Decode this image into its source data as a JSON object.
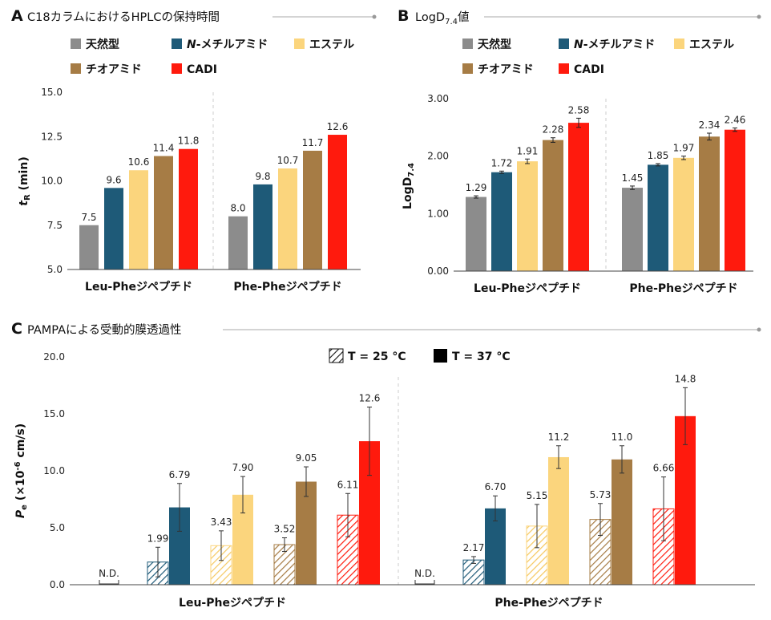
{
  "colors": {
    "natural": "#8c8c8c",
    "nmethyl": "#1e5a78",
    "ester": "#fbd57d",
    "thioamide": "#a67c45",
    "cadi": "#ff1a0d",
    "axis": "#444444",
    "divider": "#cccccc",
    "title_line": "#aaaaaa"
  },
  "legend_items": [
    {
      "key": "natural",
      "label": "天然型"
    },
    {
      "key": "nmethyl",
      "label_prefix": "N",
      "label": "-メチルアミド"
    },
    {
      "key": "ester",
      "label": "エステル"
    },
    {
      "key": "thioamide",
      "label": "チオアミド"
    },
    {
      "key": "cadi",
      "label": "CADI"
    }
  ],
  "chart_data": [
    {
      "panel": "A",
      "type": "bar",
      "title": "C18カラムにおけるHPLCの保持時間",
      "ylabel_main": "t",
      "ylabel_sub": "R",
      "ylabel_rest": " (min)",
      "ylim": [
        5.0,
        15.0
      ],
      "yticks": [
        "5.0",
        "7.5",
        "10.0",
        "12.5",
        "15.0"
      ],
      "ytick_values": [
        5.0,
        7.5,
        10.0,
        12.5,
        15.0
      ],
      "categories": [
        "Leu-Pheジペプチド",
        "Phe-Pheジペプチド"
      ],
      "series": [
        {
          "name": "天然型",
          "key": "natural",
          "values": [
            7.5,
            8.0
          ],
          "labels": [
            "7.5",
            "8.0"
          ]
        },
        {
          "name": "N-メチルアミド",
          "key": "nmethyl",
          "values": [
            9.6,
            9.8
          ],
          "labels": [
            "9.6",
            "9.8"
          ]
        },
        {
          "name": "エステル",
          "key": "ester",
          "values": [
            10.6,
            10.7
          ],
          "labels": [
            "10.6",
            "10.7"
          ]
        },
        {
          "name": "チオアミド",
          "key": "thioamide",
          "values": [
            11.4,
            11.7
          ],
          "labels": [
            "11.4",
            "11.7"
          ]
        },
        {
          "name": "CADI",
          "key": "cadi",
          "values": [
            11.8,
            12.6
          ],
          "labels": [
            "11.8",
            "12.6"
          ]
        }
      ]
    },
    {
      "panel": "B",
      "type": "bar",
      "title_main": "LogD",
      "title_sub": "7.4",
      "title_rest": "値",
      "ylabel_main": "LogD",
      "ylabel_sub": "7.4",
      "ylim": [
        0.0,
        3.0
      ],
      "yticks": [
        "0.00",
        "1.00",
        "2.00",
        "3.00"
      ],
      "ytick_values": [
        0.0,
        1.0,
        2.0,
        3.0
      ],
      "categories": [
        "Leu-Pheジペプチド",
        "Phe-Pheジペプチド"
      ],
      "series": [
        {
          "name": "天然型",
          "key": "natural",
          "values": [
            1.29,
            1.45
          ],
          "errors": [
            0.02,
            0.03
          ],
          "labels": [
            "1.29",
            "1.45"
          ]
        },
        {
          "name": "N-メチルアミド",
          "key": "nmethyl",
          "values": [
            1.72,
            1.85
          ],
          "errors": [
            0.02,
            0.02
          ],
          "labels": [
            "1.72",
            "1.85"
          ]
        },
        {
          "name": "エステル",
          "key": "ester",
          "values": [
            1.91,
            1.97
          ],
          "errors": [
            0.04,
            0.03
          ],
          "labels": [
            "1.91",
            "1.97"
          ]
        },
        {
          "name": "チオアミド",
          "key": "thioamide",
          "values": [
            2.28,
            2.34
          ],
          "errors": [
            0.04,
            0.06
          ],
          "labels": [
            "2.28",
            "2.34"
          ]
        },
        {
          "name": "CADI",
          "key": "cadi",
          "values": [
            2.58,
            2.46
          ],
          "errors": [
            0.08,
            0.03
          ],
          "labels": [
            "2.58",
            "2.46"
          ]
        }
      ]
    },
    {
      "panel": "C",
      "type": "bar",
      "title": "PAMPAによる受動的膜透過性",
      "ylabel_main": "P",
      "ylabel_sub": "e",
      "ylabel_mid": " (×10",
      "ylabel_sup": "-6",
      "ylabel_rest": " cm/s)",
      "ylim": [
        0.0,
        20.0
      ],
      "yticks": [
        "0.0",
        "5.0",
        "10.0",
        "15.0",
        "20.0"
      ],
      "ytick_values": [
        0.0,
        5.0,
        10.0,
        15.0,
        20.0
      ],
      "categories": [
        "Leu-Pheジペプチド",
        "Phe-Pheジペプチド"
      ],
      "legend": [
        {
          "label": "T = 25 °C",
          "pattern": "hatched"
        },
        {
          "label": "T = 37 °C",
          "pattern": "solid"
        }
      ],
      "not_detected_label": "N.D.",
      "series": [
        {
          "name": "天然型",
          "key": "natural",
          "t25": [
            null,
            null
          ],
          "t25_err": [
            null,
            null
          ],
          "t25_labels": [
            "",
            ""
          ],
          "t37": [
            null,
            null
          ],
          "t37_err": [
            null,
            null
          ],
          "t37_labels": [
            "",
            ""
          ]
        },
        {
          "name": "N-メチルアミド",
          "key": "nmethyl",
          "t25": [
            1.99,
            2.17
          ],
          "t25_err": [
            1.3,
            0.3
          ],
          "t25_labels": [
            "1.99",
            "2.17"
          ],
          "t37": [
            6.79,
            6.7
          ],
          "t37_err": [
            2.1,
            1.1
          ],
          "t37_labels": [
            "6.79",
            "6.70"
          ]
        },
        {
          "name": "エステル",
          "key": "ester",
          "t25": [
            3.43,
            5.15
          ],
          "t25_err": [
            1.3,
            1.9
          ],
          "t25_labels": [
            "3.43",
            "5.15"
          ],
          "t37": [
            7.9,
            11.2
          ],
          "t37_err": [
            1.6,
            1.0
          ],
          "t37_labels": [
            "7.90",
            "11.2"
          ]
        },
        {
          "name": "チオアミド",
          "key": "thioamide",
          "t25": [
            3.52,
            5.73
          ],
          "t25_err": [
            0.6,
            1.4
          ],
          "t25_labels": [
            "3.52",
            "5.73"
          ],
          "t37": [
            9.05,
            11.0
          ],
          "t37_err": [
            1.3,
            1.2
          ],
          "t37_labels": [
            "9.05",
            "11.0"
          ]
        },
        {
          "name": "CADI",
          "key": "cadi",
          "t25": [
            6.11,
            6.66
          ],
          "t25_err": [
            1.9,
            2.8
          ],
          "t25_labels": [
            "6.11",
            "6.66"
          ],
          "t37": [
            12.6,
            14.8
          ],
          "t37_err": [
            3.0,
            2.5
          ],
          "t37_labels": [
            "12.6",
            "14.8"
          ]
        }
      ]
    }
  ]
}
